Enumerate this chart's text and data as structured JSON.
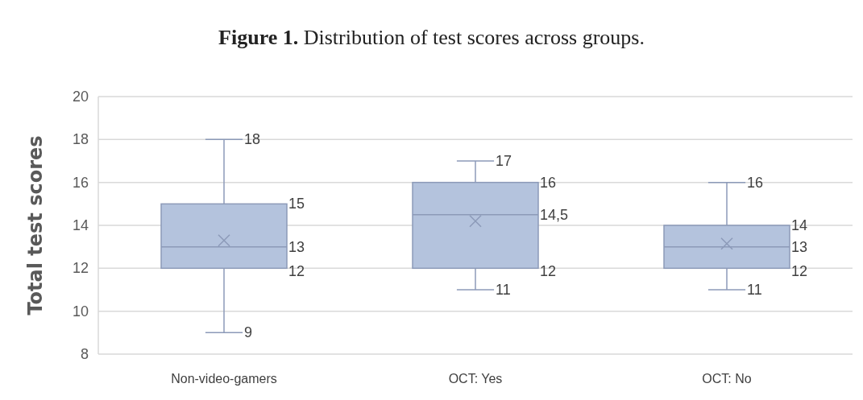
{
  "chart_data": {
    "type": "box",
    "title": "Figure 1. Distribution of test scores across groups.",
    "ylabel": "Total test scores",
    "categories": [
      "Non-video-gamers",
      "OCT: Yes",
      "OCT: No"
    ],
    "boxes": [
      {
        "low": 9,
        "q1": 12,
        "median": 13,
        "q3": 15,
        "high": 18,
        "mean": 13.3
      },
      {
        "low": 11,
        "q1": 12,
        "median": 14.5,
        "q3": 16,
        "high": 17,
        "mean": 14.2
      },
      {
        "low": 11,
        "q1": 12,
        "median": 13,
        "q3": 14,
        "high": 16,
        "mean": 13.15
      }
    ],
    "value_labels": [
      [
        "18",
        "15",
        "13",
        "12",
        "9"
      ],
      [
        "17",
        "16",
        "14,5",
        "12",
        "11"
      ],
      [
        "16",
        "14",
        "13",
        "12",
        "11"
      ]
    ],
    "color": "#b4c3dd",
    "ylim": [
      8,
      20
    ],
    "yticks": [
      8,
      10,
      12,
      14,
      16,
      18,
      20
    ],
    "grid": "y"
  }
}
